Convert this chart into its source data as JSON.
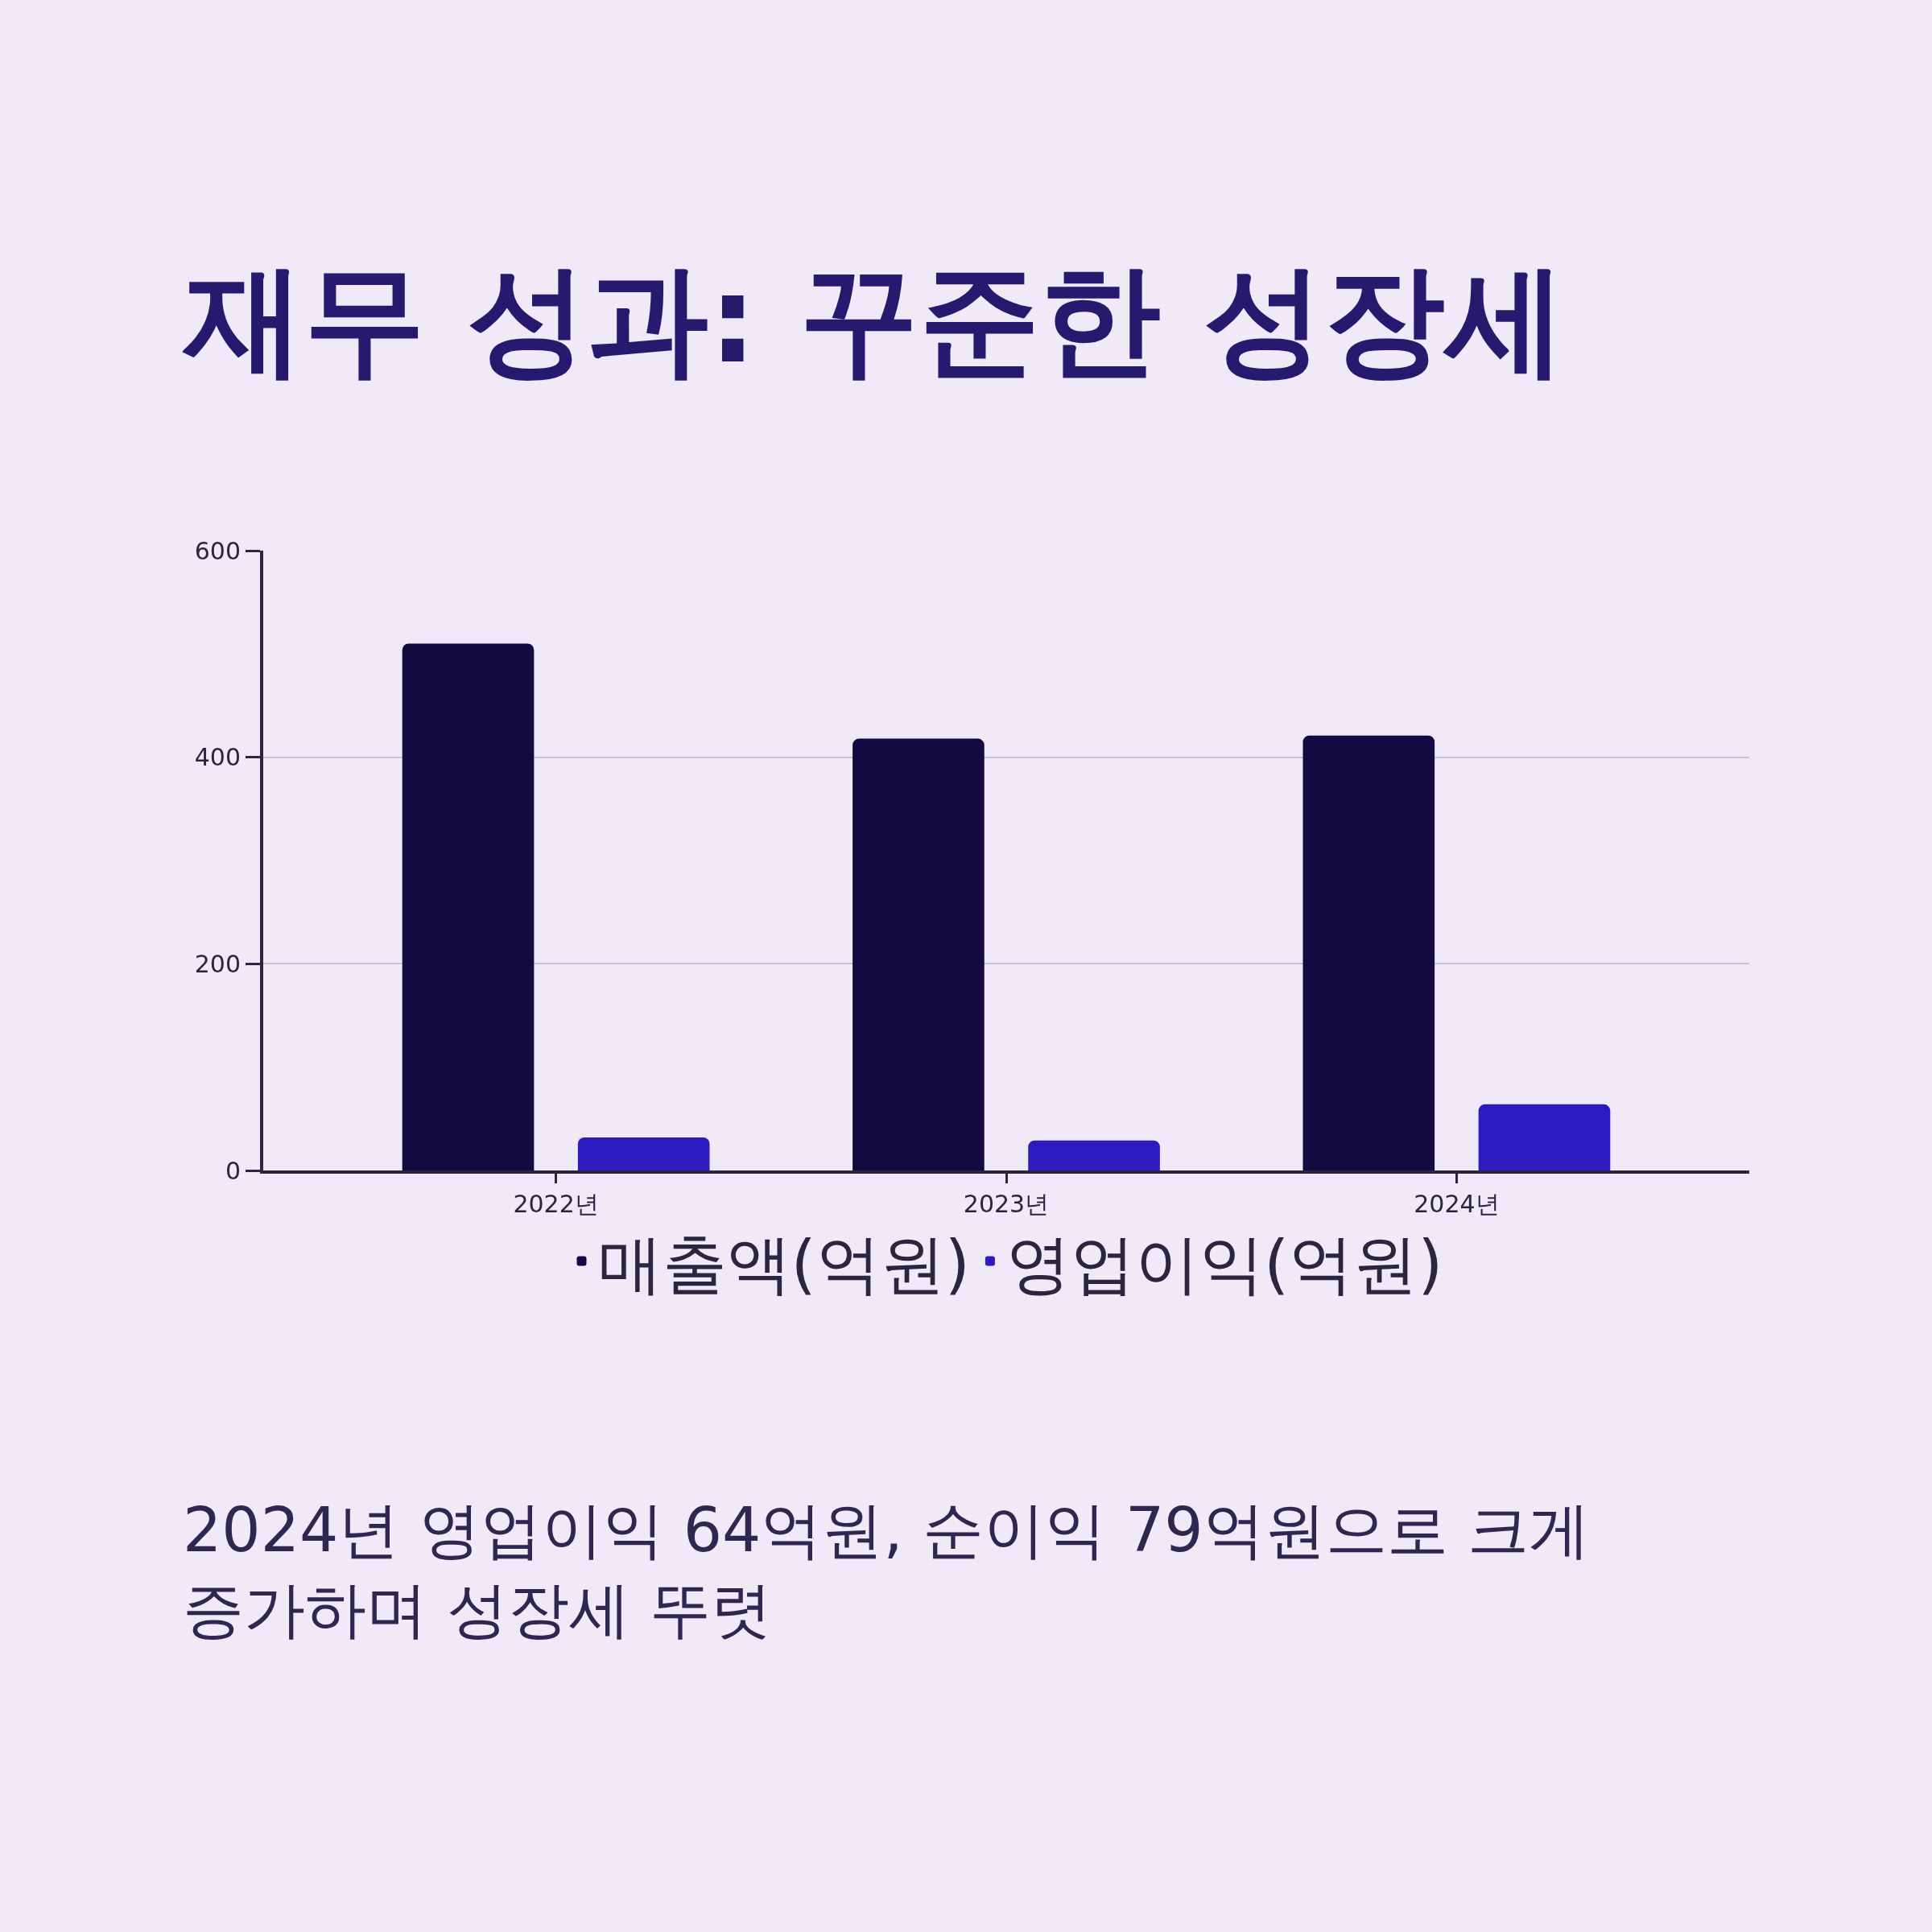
{
  "chart_data": {
    "type": "bar",
    "title": "재무 성과: 꾸준한 성장세",
    "categories": [
      "2022년",
      "2023년",
      "2024년"
    ],
    "series": [
      {
        "name": "매출액(억원)",
        "color": "#120a40",
        "values": [
          510,
          418,
          421
        ]
      },
      {
        "name": "영업이익(억원)",
        "color": "#2d1bc0",
        "values": [
          32,
          29,
          64
        ]
      }
    ],
    "ylim": [
      0,
      600
    ],
    "yticks": [
      0,
      200,
      400,
      600
    ],
    "grid": "y",
    "legend": "bottom",
    "annotations": [
      "2024년 영업이익 64억원, 순이익 79억원으로 크게 증가하며 성장세 뚜렷"
    ]
  }
}
